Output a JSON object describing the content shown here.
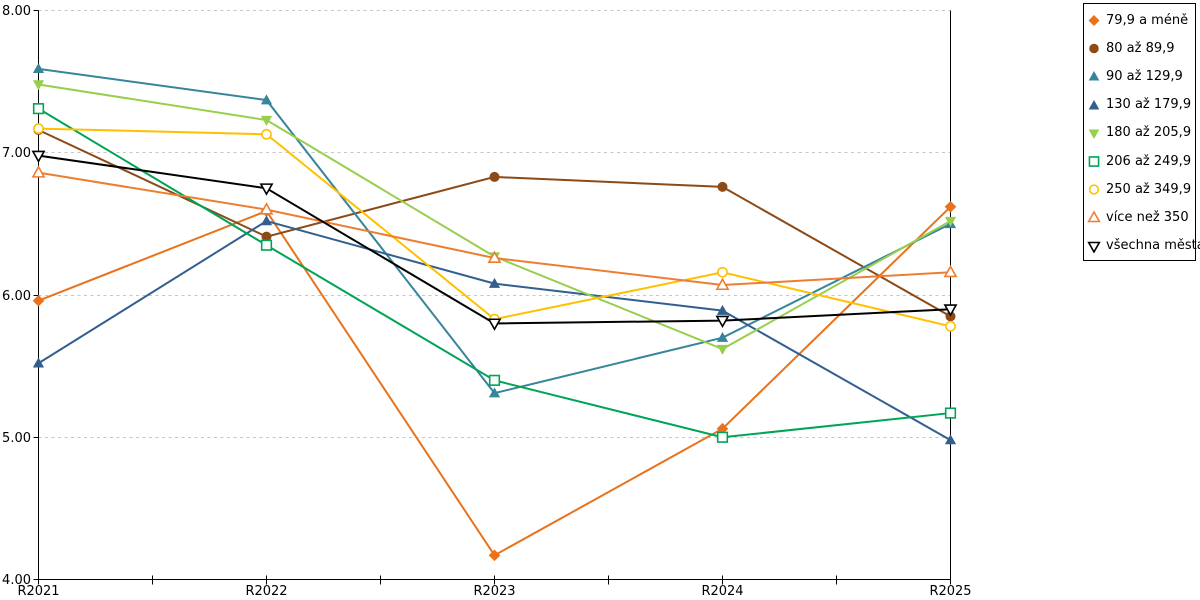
{
  "chart_data": {
    "type": "line",
    "title": "",
    "xlabel": "",
    "ylabel": "",
    "categories": [
      "R2021",
      "R2022",
      "R2023",
      "R2024",
      "R2025"
    ],
    "series": [
      {
        "name": "79,9 a méně",
        "color": "#E8731C",
        "marker": "diamond-filled",
        "values": [
          5.96,
          6.59,
          4.17,
          5.06,
          6.62
        ]
      },
      {
        "name": "80 až 89,9",
        "color": "#8C4A17",
        "marker": "circle-filled",
        "values": [
          7.16,
          6.41,
          6.83,
          6.76,
          5.85
        ]
      },
      {
        "name": "90 až 129,9",
        "color": "#37859B",
        "marker": "triangle-up-filled",
        "values": [
          7.59,
          7.37,
          5.31,
          5.7,
          6.5
        ]
      },
      {
        "name": "130 až 179,9",
        "color": "#325F8F",
        "marker": "triangle-up-filled",
        "values": [
          5.52,
          6.52,
          6.08,
          5.89,
          4.98
        ]
      },
      {
        "name": "180 až 205,9",
        "color": "#97CE4C",
        "marker": "triangle-down-filled",
        "values": [
          7.48,
          7.23,
          6.27,
          5.62,
          6.52
        ]
      },
      {
        "name": "206 až 249,9",
        "color": "#00A455",
        "marker": "square-open",
        "values": [
          7.31,
          6.35,
          5.4,
          5.0,
          5.17
        ]
      },
      {
        "name": "250 až 349,9",
        "color": "#FFC000",
        "marker": "circle-open",
        "values": [
          7.17,
          7.13,
          5.83,
          6.16,
          5.78
        ]
      },
      {
        "name": "více než 350",
        "color": "#ED7D31",
        "marker": "triangle-up-open",
        "values": [
          6.86,
          6.6,
          6.26,
          6.07,
          6.16
        ]
      },
      {
        "name": "všechna města",
        "color": "#000000",
        "marker": "triangle-down-open",
        "values": [
          6.98,
          6.75,
          5.8,
          5.82,
          5.9
        ]
      }
    ],
    "ylim": [
      4,
      8
    ],
    "yticks": [
      {
        "label": "8.00",
        "value": 8
      },
      {
        "label": "7.00",
        "value": 7
      },
      {
        "label": "6.00",
        "value": 6
      },
      {
        "label": "5.00",
        "value": 5
      },
      {
        "label": "4.00",
        "value": 4
      }
    ],
    "grid": true,
    "grid_color": "#C6C6C6",
    "axis_color": "#000000",
    "legend_position": "right"
  }
}
